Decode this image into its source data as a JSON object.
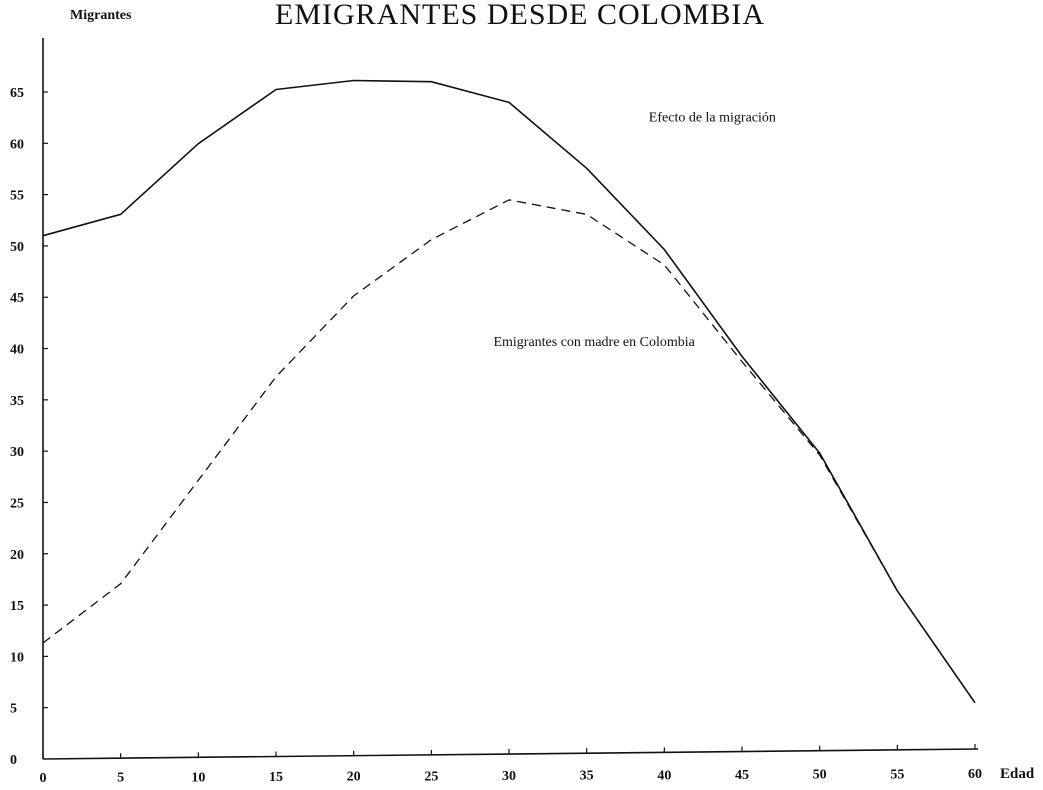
{
  "chart_data": {
    "type": "line",
    "title": "EMIGRANTES DESDE COLOMBIA",
    "ylabel": "Migrantes",
    "xlabel": "Edad",
    "x": [
      0,
      5,
      10,
      15,
      20,
      25,
      30,
      35,
      40,
      45,
      50,
      55,
      60
    ],
    "xlim": [
      0,
      60
    ],
    "ylim": [
      0,
      70
    ],
    "xticks": [
      "0",
      "5",
      "10",
      "15",
      "20",
      "25",
      "30",
      "35",
      "40",
      "45",
      "50",
      "55",
      "60"
    ],
    "yticks": [
      "0",
      "5",
      "10",
      "15",
      "20",
      "25",
      "30",
      "35",
      "40",
      "45",
      "50",
      "55",
      "60",
      "65"
    ],
    "grid": false,
    "series": [
      {
        "values": [
          51,
          53,
          59.8,
          65,
          65.8,
          65.6,
          63.5,
          57,
          49,
          38.5,
          29,
          15.5,
          4.5
        ],
        "style": "solid",
        "color": "#111111"
      },
      {
        "values": [
          11.3,
          17,
          27,
          37,
          44.8,
          50.2,
          54,
          52.5,
          47.5,
          38,
          28.8,
          15.5,
          4.5
        ],
        "style": "dashed",
        "color": "#111111"
      }
    ],
    "annotations": [
      {
        "text": "Efecto de la migración",
        "x": 39,
        "y": 61.5
      },
      {
        "text": "Emigrantes con madre en Colombia",
        "x": 29,
        "y": 39.8
      }
    ]
  }
}
